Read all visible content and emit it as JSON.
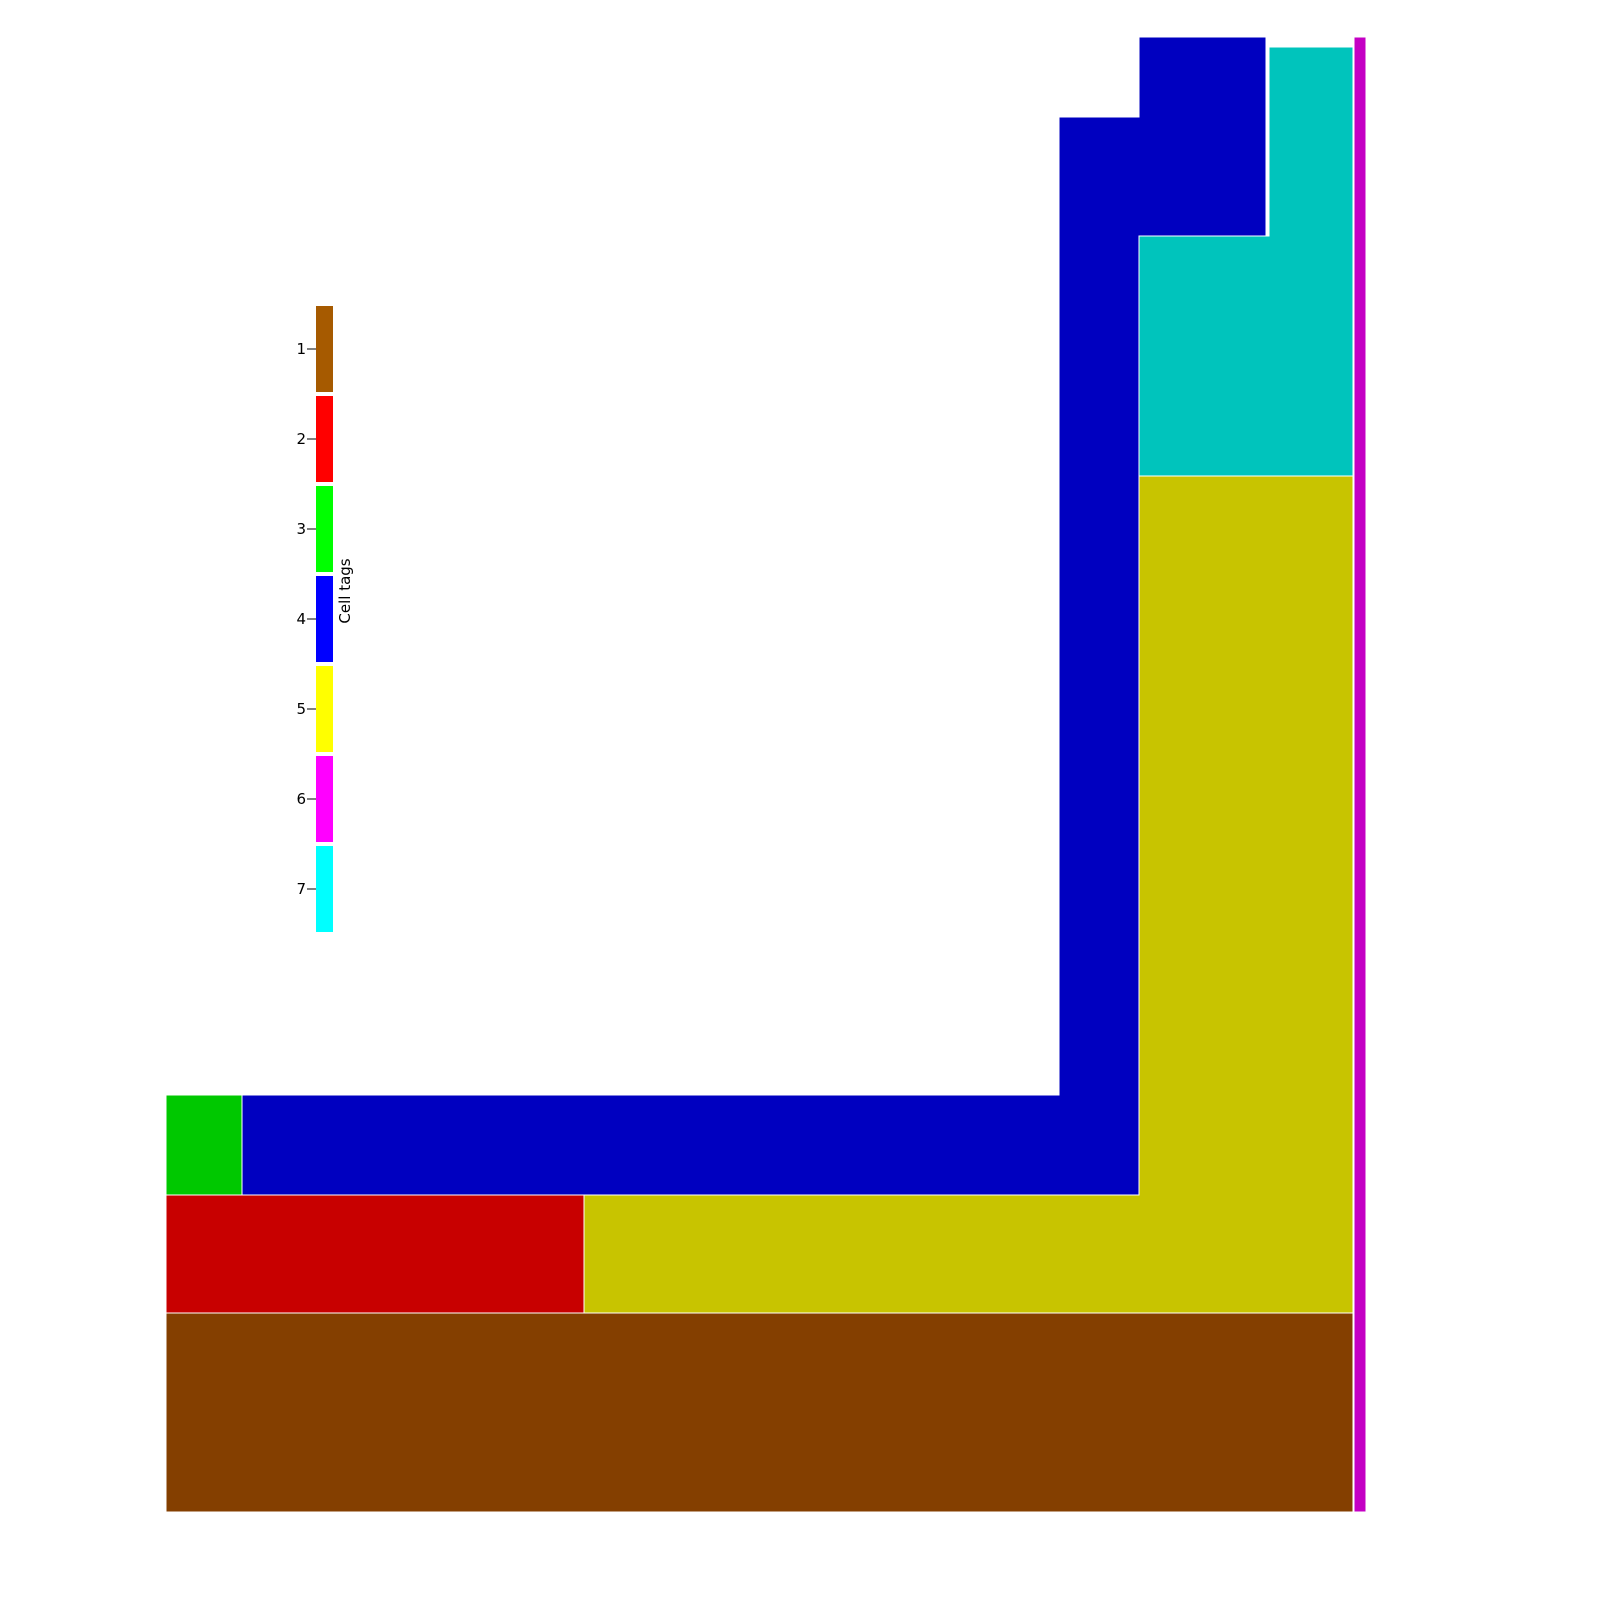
{
  "legend": {
    "title": "Cell tags",
    "entries": [
      {
        "tag": 1,
        "label": "1",
        "color": "#a65a00"
      },
      {
        "tag": 2,
        "label": "2",
        "color": "#ff0000"
      },
      {
        "tag": 3,
        "label": "3",
        "color": "#00ff00"
      },
      {
        "tag": 4,
        "label": "4",
        "color": "#0000ff"
      },
      {
        "tag": 5,
        "label": "5",
        "color": "#ffff00"
      },
      {
        "tag": 6,
        "label": "6",
        "color": "#ff00ff"
      },
      {
        "tag": 7,
        "label": "7",
        "color": "#00ffff"
      }
    ]
  },
  "mesh": {
    "regions": [
      {
        "id": "region-tag-1",
        "tag": 1,
        "color": "#843f00"
      },
      {
        "id": "region-tag-2",
        "tag": 2,
        "color": "#c80000"
      },
      {
        "id": "region-tag-3",
        "tag": 3,
        "color": "#00c800"
      },
      {
        "id": "region-tag-4",
        "tag": 4,
        "color": "#0000c0"
      },
      {
        "id": "region-tag-5",
        "tag": 5,
        "color": "#c8c400"
      },
      {
        "id": "region-tag-6",
        "tag": 6,
        "color": "#c400c4"
      },
      {
        "id": "region-tag-7",
        "tag": 7,
        "color": "#00c4bc"
      }
    ]
  }
}
